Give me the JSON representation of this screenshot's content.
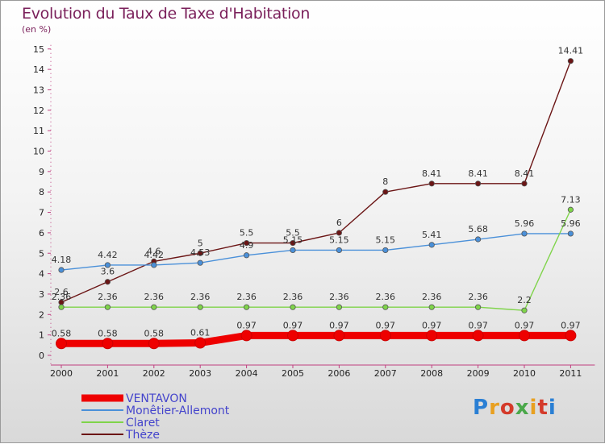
{
  "title": "Evolution du Taux de Taxe d'Habitation",
  "subtitle": "(en %)",
  "logo_text": "Proxiti",
  "chart_data": {
    "type": "line",
    "title": "Evolution du Taux de Taxe d'Habitation",
    "ylabel": "(en %)",
    "xlabel": "",
    "ylim": [
      0,
      15
    ],
    "yticks": [
      "0",
      "1",
      "2",
      "3",
      "4",
      "5",
      "6",
      "7",
      "8",
      "9",
      "10",
      "11",
      "12",
      "13",
      "14",
      "15"
    ],
    "categories": [
      "2000",
      "2001",
      "2002",
      "2003",
      "2004",
      "2005",
      "2006",
      "2007",
      "2008",
      "2009",
      "2010",
      "2011"
    ],
    "grid": false,
    "legend_position": "bottom-left",
    "series": [
      {
        "name": "VENTAVON",
        "color": "#ee0000",
        "emphasis": true,
        "values": [
          0.58,
          0.58,
          0.58,
          0.61,
          0.97,
          0.97,
          0.97,
          0.97,
          0.97,
          0.97,
          0.97,
          0.97
        ],
        "labels": [
          "0.58",
          "0.58",
          "0.58",
          "0.61",
          "0.97",
          "0.97",
          "0.97",
          "0.97",
          "0.97",
          "0.97",
          "0.97",
          "0.97"
        ]
      },
      {
        "name": "Monêtier-Allemont",
        "color": "#4a90d9",
        "values": [
          4.18,
          4.42,
          4.42,
          4.53,
          4.9,
          5.15,
          5.15,
          5.15,
          5.41,
          5.68,
          5.96,
          5.96
        ],
        "labels": [
          "4.18",
          "4.42",
          "4.42",
          "4.53",
          "4.9",
          "5.15",
          "5.15",
          "5.15",
          "5.41",
          "5.68",
          "5.96",
          "5.96"
        ]
      },
      {
        "name": "Claret",
        "color": "#7fd44a",
        "values": [
          2.36,
          2.36,
          2.36,
          2.36,
          2.36,
          2.36,
          2.36,
          2.36,
          2.36,
          2.36,
          2.2,
          7.13
        ],
        "labels": [
          "2.36",
          "2.36",
          "2.36",
          "2.36",
          "2.36",
          "2.36",
          "2.36",
          "2.36",
          "2.36",
          "2.36",
          "2.2",
          "7.13"
        ]
      },
      {
        "name": "Thèze",
        "color": "#6b1515",
        "values": [
          2.6,
          3.6,
          4.6,
          5,
          5.5,
          5.5,
          6,
          8,
          8.41,
          8.41,
          8.41,
          14.41
        ],
        "labels": [
          "2.6",
          "3.6",
          "4.6",
          "5",
          "5.5",
          "5.5",
          "6",
          "8",
          "8.41",
          "8.41",
          "8.41",
          "14.41"
        ]
      }
    ]
  }
}
